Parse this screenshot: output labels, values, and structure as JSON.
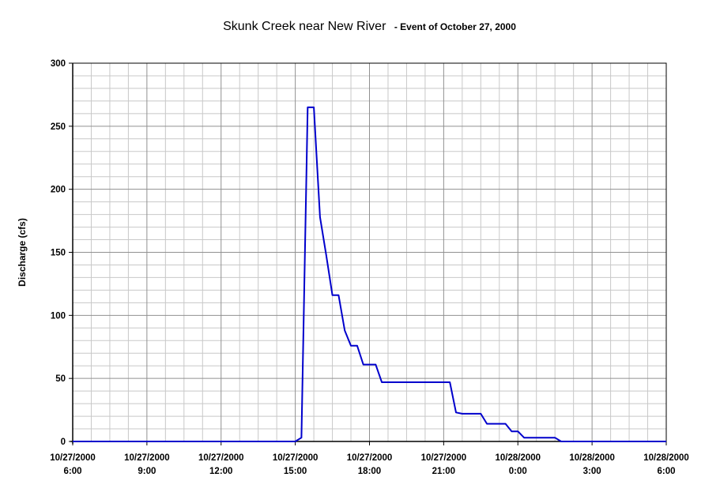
{
  "chart_data": {
    "type": "line",
    "title": "Skunk Creek near New River",
    "subtitle": "- Event of October 27, 2000",
    "xlabel": "",
    "ylabel": "Discharge (cfs)",
    "ylim": [
      0,
      300
    ],
    "y_ticks": [
      "0",
      "50",
      "100",
      "150",
      "200",
      "250",
      "300"
    ],
    "x_ticks": [
      {
        "date": "10/27/2000",
        "time": "6:00"
      },
      {
        "date": "10/27/2000",
        "time": "9:00"
      },
      {
        "date": "10/27/2000",
        "time": "12:00"
      },
      {
        "date": "10/27/2000",
        "time": "15:00"
      },
      {
        "date": "10/27/2000",
        "time": "18:00"
      },
      {
        "date": "10/27/2000",
        "time": "21:00"
      },
      {
        "date": "10/28/2000",
        "time": "0:00"
      },
      {
        "date": "10/28/2000",
        "time": "3:00"
      },
      {
        "date": "10/28/2000",
        "time": "6:00"
      }
    ],
    "grid": true,
    "line_color": "#0000cc",
    "series": [
      {
        "points": [
          {
            "x": "10/27/2000 6:00",
            "y": 0
          },
          {
            "x": "10/27/2000 15:00",
            "y": 0
          },
          {
            "x": "10/27/2000 15:15",
            "y": 3
          },
          {
            "x": "10/27/2000 15:30",
            "y": 265
          },
          {
            "x": "10/27/2000 15:45",
            "y": 265
          },
          {
            "x": "10/27/2000 16:00",
            "y": 178
          },
          {
            "x": "10/27/2000 16:15",
            "y": 148
          },
          {
            "x": "10/27/2000 16:30",
            "y": 116
          },
          {
            "x": "10/27/2000 16:45",
            "y": 116
          },
          {
            "x": "10/27/2000 17:00",
            "y": 88
          },
          {
            "x": "10/27/2000 17:15",
            "y": 76
          },
          {
            "x": "10/27/2000 17:30",
            "y": 76
          },
          {
            "x": "10/27/2000 17:45",
            "y": 61
          },
          {
            "x": "10/27/2000 18:15",
            "y": 61
          },
          {
            "x": "10/27/2000 18:30",
            "y": 47
          },
          {
            "x": "10/27/2000 21:15",
            "y": 47
          },
          {
            "x": "10/27/2000 21:30",
            "y": 23
          },
          {
            "x": "10/27/2000 21:45",
            "y": 22
          },
          {
            "x": "10/27/2000 22:30",
            "y": 22
          },
          {
            "x": "10/27/2000 22:45",
            "y": 14
          },
          {
            "x": "10/27/2000 23:30",
            "y": 14
          },
          {
            "x": "10/27/2000 23:45",
            "y": 8
          },
          {
            "x": "10/28/2000 0:00",
            "y": 8
          },
          {
            "x": "10/28/2000 0:15",
            "y": 3
          },
          {
            "x": "10/28/2000 1:30",
            "y": 3
          },
          {
            "x": "10/28/2000 1:45",
            "y": 0
          },
          {
            "x": "10/28/2000 6:00",
            "y": 0
          }
        ]
      }
    ]
  }
}
